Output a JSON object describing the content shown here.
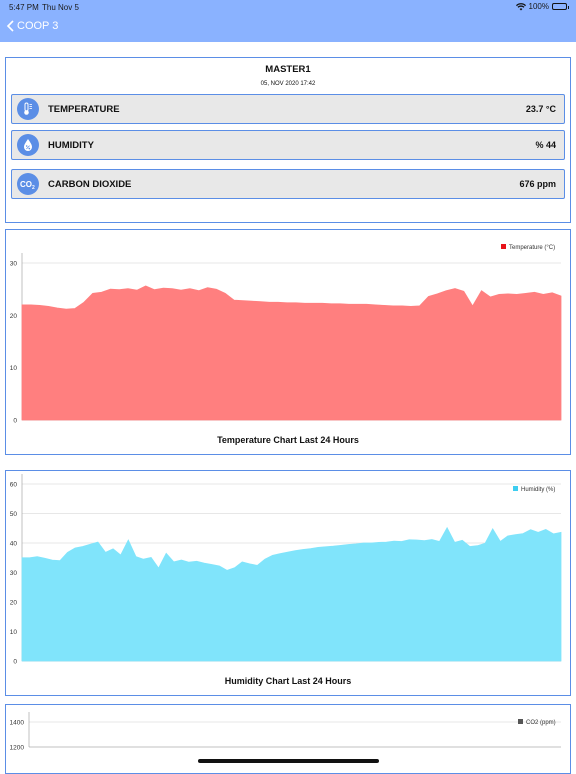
{
  "status": {
    "time": "5:47 PM",
    "date": "Thu Nov 5",
    "battery": "100%"
  },
  "nav": {
    "back_label": "COOP 3"
  },
  "master": {
    "title": "MASTER1",
    "timestamp": "05, NOV 2020 17:42",
    "readings": [
      {
        "icon": "thermometer-icon",
        "label": "TEMPERATURE",
        "value": "23.7 °C"
      },
      {
        "icon": "humidity-drop-icon",
        "label": "HUMIDITY",
        "value": "% 44"
      },
      {
        "icon": "co2-icon",
        "label": "CARBON DIOXIDE",
        "value": "676 ppm"
      }
    ]
  },
  "colors": {
    "accent": "#5b8ee6",
    "nav": "#8ab2ff",
    "temperature": "#ff7f7f",
    "temperature_legend": "#e8131a",
    "humidity": "#80e4fb",
    "humidity_legend": "#3dcdf0",
    "co2_legend": "#555555"
  },
  "chart_data": [
    {
      "type": "area",
      "title": "Temperature Chart Last 24 Hours",
      "legend": "Temperature (°C)",
      "legend_position": "top-right",
      "ylim": [
        0,
        35
      ],
      "yticks": [
        0,
        10,
        20,
        30
      ],
      "grid": true,
      "values": [
        22,
        22,
        21.9,
        21.7,
        21.4,
        21.2,
        21.3,
        22.5,
        24.2,
        24.4,
        25,
        24.9,
        25.1,
        24.8,
        25.6,
        24.9,
        25.2,
        25.1,
        24.8,
        25.1,
        24.7,
        25.3,
        25,
        24.2,
        22.9,
        22.8,
        22.7,
        22.6,
        22.5,
        22.5,
        22.4,
        22.4,
        22.3,
        22.3,
        22.3,
        22.2,
        22.2,
        22.1,
        22.1,
        22.1,
        22,
        21.9,
        21.8,
        21.8,
        21.7,
        21.8,
        23.6,
        24.1,
        24.7,
        25.1,
        24.6,
        21.8,
        24.7,
        23.5,
        24,
        24.1,
        24,
        24.2,
        24.4,
        24,
        24.3,
        23.7
      ]
    },
    {
      "type": "area",
      "title": "Humidity Chart Last 24 Hours",
      "legend": "Humidity (%)",
      "legend_position": "top-right",
      "ylim": [
        0,
        60
      ],
      "yticks": [
        0,
        10,
        20,
        30,
        40,
        50,
        60
      ],
      "grid": true,
      "values": [
        35,
        35,
        35.4,
        34.8,
        34.2,
        34,
        36.8,
        38.3,
        38.8,
        39.6,
        40.3,
        36.8,
        38,
        35.9,
        41,
        35.4,
        34.5,
        35.1,
        31.5,
        36.5,
        33.6,
        34.2,
        33.5,
        33.8,
        33.2,
        32.7,
        32.2,
        30.7,
        31.6,
        33.6,
        32.9,
        32.4,
        34.5,
        35.8,
        36.4,
        36.9,
        37.4,
        37.8,
        38.1,
        38.5,
        38.7,
        38.9,
        39.2,
        39.5,
        39.7,
        40,
        40,
        40.2,
        40.3,
        40.6,
        40.5,
        41.1,
        41,
        40.8,
        41.2,
        40.5,
        45.2,
        40.2,
        40.9,
        38.8,
        39.1,
        39.9,
        44.8,
        40.5,
        42.4,
        42.8,
        43.2,
        44.5,
        43.6,
        44.6,
        43.1,
        43.6
      ]
    },
    {
      "type": "area",
      "title": "",
      "legend": "CO2 (ppm)",
      "legend_position": "top-right",
      "yticks": [
        1200,
        1400
      ],
      "grid": true,
      "values": []
    }
  ]
}
